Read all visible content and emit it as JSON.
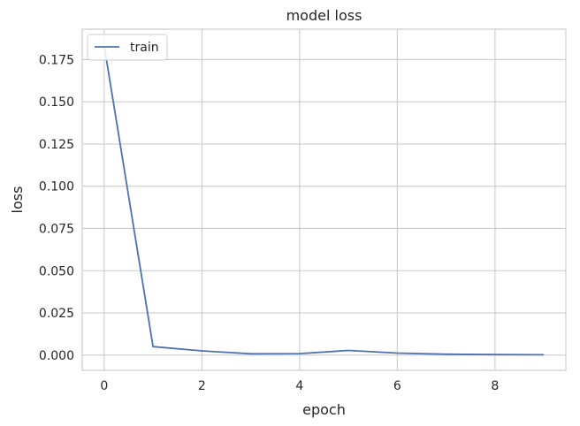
{
  "chart_data": {
    "type": "line",
    "title": "model loss",
    "xlabel": "epoch",
    "ylabel": "loss",
    "xlim": [
      -0.45,
      9.45
    ],
    "ylim": [
      -0.009,
      0.193
    ],
    "xticks": [
      0,
      2,
      4,
      6,
      8
    ],
    "xtick_labels": [
      "0",
      "2",
      "4",
      "6",
      "8"
    ],
    "yticks": [
      0.0,
      0.025,
      0.05,
      0.075,
      0.1,
      0.125,
      0.15,
      0.175
    ],
    "ytick_labels": [
      "0.000",
      "0.025",
      "0.050",
      "0.075",
      "0.100",
      "0.125",
      "0.150",
      "0.175"
    ],
    "grid": true,
    "legend_position": "upper-left",
    "series": [
      {
        "name": "train",
        "color": "#4c72b0",
        "x": [
          0,
          1,
          2,
          3,
          4,
          5,
          6,
          7,
          8,
          9
        ],
        "values": [
          0.183,
          0.005,
          0.0025,
          0.0008,
          0.0009,
          0.0028,
          0.0012,
          0.0005,
          0.0003,
          0.0002
        ]
      }
    ]
  }
}
